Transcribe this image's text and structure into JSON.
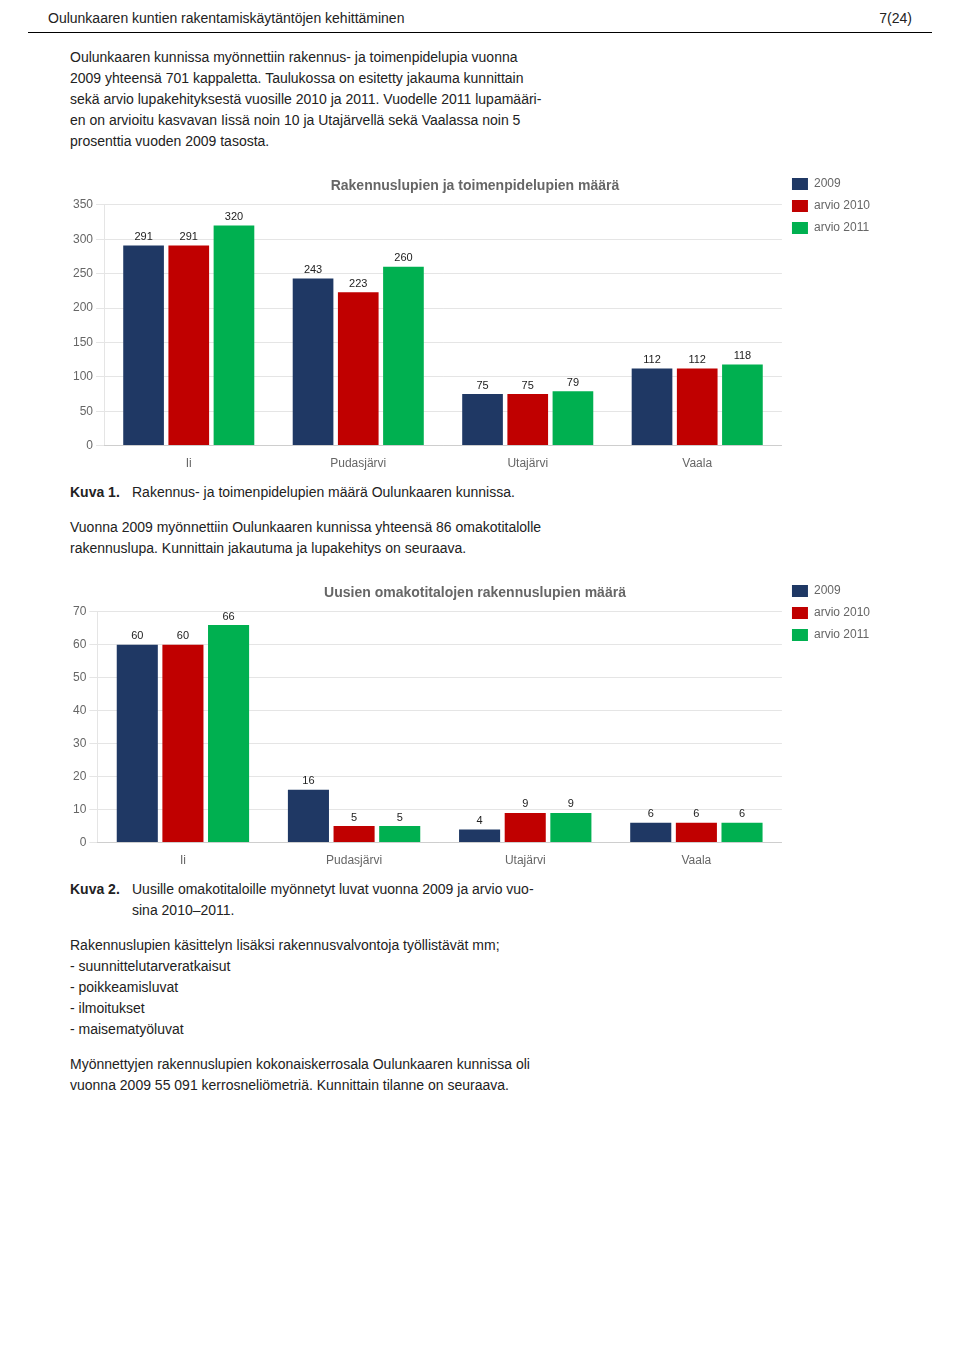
{
  "header": {
    "left": "Oulunkaaren kuntien rakentamiskäytäntöjen kehittäminen",
    "right": "7(24)"
  },
  "paragraph1": [
    "Oulunkaaren kunnissa myönnettiin rakennus- ja toimenpidelupia vuonna",
    "2009 yhteensä 701 kappaletta. Taulukossa on esitetty jakauma kunnittain",
    "sekä arvio lupakehityksestä vuosille 2010 ja 2011. Vuodelle 2011 lupamääri-",
    "en on arvioitu kasvavan Iissä noin 10 ja Utajärvellä sekä Vaalassa noin 5",
    "prosenttia vuoden 2009 tasosta."
  ],
  "caption1": {
    "label": "Kuva 1.",
    "lines": [
      "Rakennus- ja toimenpidelupien määrä Oulunkaaren kunnissa."
    ]
  },
  "paragraph2": [
    "Vuonna 2009 myönnettiin Oulunkaaren kunnissa yhteensä 86 omakotitalolle",
    "rakennuslupa. Kunnittain jakautuma ja lupakehitys on seuraava."
  ],
  "caption2": {
    "label": "Kuva 2.",
    "lines": [
      "Uusille omakotitaloille myönnetyt luvat vuonna 2009 ja arvio vuo-",
      "sina 2010–2011."
    ]
  },
  "paragraph3": [
    "Rakennuslupien käsittelyn lisäksi rakennusvalvontoja työllistävät mm;",
    "- suunnittelutarveratkaisut",
    "- poikkeamisluvat",
    "- ilmoitukset",
    "- maisematyöluvat"
  ],
  "paragraph4": [
    "Myönnettyjen rakennuslupien kokonaiskerrosala Oulunkaaren kunnissa oli",
    "vuonna 2009 55 091 kerrosneliömetriä. Kunnittain tilanne on seuraava."
  ],
  "chart_data": [
    {
      "type": "bar",
      "title": "Rakennuslupien ja toimenpidelupien määrä",
      "categories": [
        "Ii",
        "Pudasjärvi",
        "Utajärvi",
        "Vaala"
      ],
      "series": [
        {
          "name": "2009",
          "color": "#1F3864",
          "values": [
            291,
            243,
            75,
            112
          ]
        },
        {
          "name": "arvio 2010",
          "color": "#C00000",
          "values": [
            291,
            223,
            75,
            112
          ]
        },
        {
          "name": "arvio 2011",
          "color": "#00B050",
          "values": [
            320,
            260,
            79,
            118
          ]
        }
      ],
      "ylim": [
        0,
        350
      ],
      "yticks": [
        0,
        50,
        100,
        150,
        200,
        250,
        300,
        350
      ],
      "grid": true,
      "legend": "right",
      "data_labels": true
    },
    {
      "type": "bar",
      "title": "Uusien omakotitalojen rakennuslupien määrä",
      "categories": [
        "Ii",
        "Pudasjärvi",
        "Utajärvi",
        "Vaala"
      ],
      "series": [
        {
          "name": "2009",
          "color": "#1F3864",
          "values": [
            60,
            16,
            4,
            6
          ]
        },
        {
          "name": "arvio 2010",
          "color": "#C00000",
          "values": [
            60,
            5,
            9,
            6
          ]
        },
        {
          "name": "arvio 2011",
          "color": "#00B050",
          "values": [
            66,
            5,
            9,
            6
          ]
        }
      ],
      "ylim": [
        0,
        70
      ],
      "yticks": [
        0,
        10,
        20,
        30,
        40,
        50,
        60,
        70
      ],
      "grid": true,
      "legend": "right",
      "data_labels": true
    }
  ]
}
